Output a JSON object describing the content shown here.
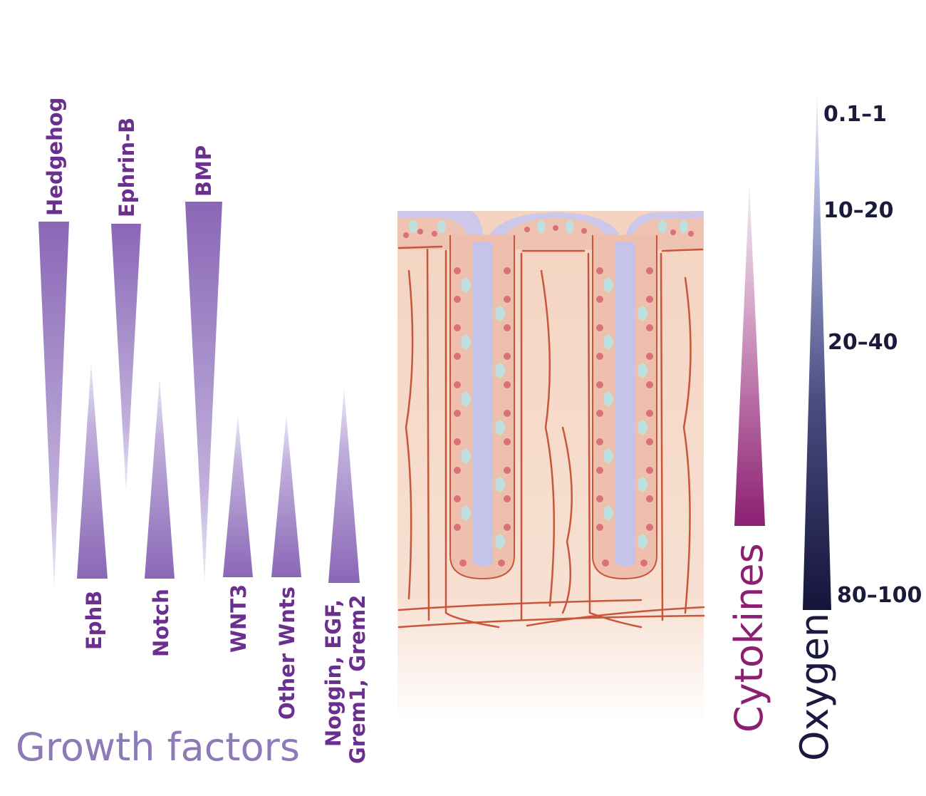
{
  "gradients": {
    "hedgehog": "Hedgehog",
    "ephrin_b": "Ephrin-B",
    "bmp": "BMP",
    "ephb": "EphB",
    "notch": "Notch",
    "wnt3": "WNT3",
    "other_wnts": "Other Wnts",
    "noggin_line1": "Noggin, EGF,",
    "noggin_line2": "Grem1, Grem2"
  },
  "growth_factors_label": "Growth factors",
  "cytokines_label": "Cytokines",
  "oxygen_label": "Oxygen",
  "oxygen_levels": [
    "0.1–1",
    "10–20",
    "20–40",
    "80–100"
  ],
  "colors": {
    "growth_factor_purple": "#8a67b6",
    "label_purple": "#6b2f8f",
    "growth_factors_text": "#8d7ab8",
    "cytokines": "#8c1f72",
    "oxygen_dark": "#1a1a40",
    "tissue": "#f6d8c6",
    "vessel": "#c9553a",
    "lumen": "#c4c4ea"
  }
}
